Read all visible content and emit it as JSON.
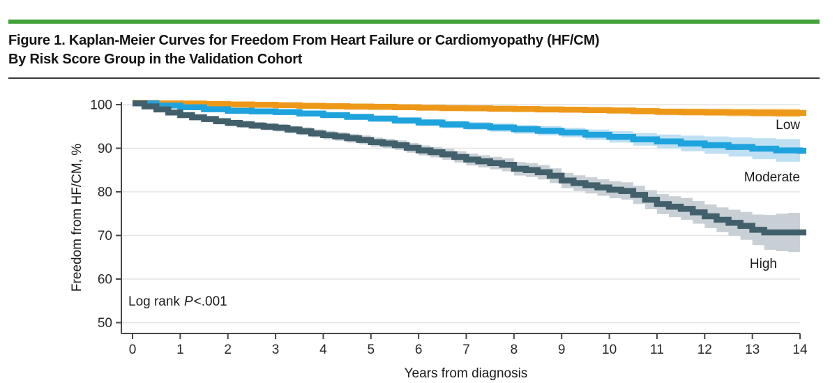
{
  "header": {
    "title_line1": "Figure 1. Kaplan-Meier Curves for Freedom From Heart Failure or Cardiomyopathy (HF/CM)",
    "title_line2": "By Risk Score Group in the Validation Cohort",
    "accent_color": "#44A23B"
  },
  "chart_data": {
    "type": "line",
    "subtype": "kaplan-meier-step-with-confidence-bands",
    "title": "Kaplan-Meier Curves for Freedom From Heart Failure or Cardiomyopathy (HF/CM) By Risk Score Group in the Validation Cohort",
    "xlabel": "Years from diagnosis",
    "ylabel": "Freedom from HF/CM, %",
    "xlim": [
      0,
      14
    ],
    "ylim": [
      47.5,
      102
    ],
    "xticks": [
      0,
      1,
      2,
      3,
      4,
      5,
      6,
      7,
      8,
      9,
      10,
      11,
      12,
      13,
      14
    ],
    "yticks": [
      50,
      60,
      70,
      80,
      90,
      100
    ],
    "grid": "horizontal-only",
    "legend_position": "right-end-of-curve-labels",
    "annotation": {
      "prefix": "Log rank",
      "italic": "P",
      "suffix": "<.001"
    },
    "colors": {
      "grid": "#E4E4E4",
      "axis": "#474747"
    },
    "series": [
      {
        "name": "Low",
        "color": "#EE9819",
        "band_color": "#F6CE8B",
        "x": [
          0,
          0.5,
          1,
          1.5,
          2,
          2.5,
          3,
          3.5,
          4,
          4.5,
          5,
          5.5,
          6,
          6.5,
          7,
          7.5,
          8,
          8.5,
          9,
          9.5,
          10,
          10.5,
          11,
          11.5,
          12,
          12.5,
          13,
          13.5,
          14
        ],
        "values": [
          100.4,
          100.3,
          100.25,
          100.15,
          100.05,
          99.95,
          99.85,
          99.75,
          99.65,
          99.55,
          99.5,
          99.4,
          99.3,
          99.2,
          99.15,
          99.05,
          99.0,
          98.9,
          98.85,
          98.75,
          98.65,
          98.5,
          98.35,
          98.3,
          98.25,
          98.2,
          98.15,
          98.1,
          98.1
        ],
        "ci_halfwidth": [
          0.2,
          0.22,
          0.25,
          0.28,
          0.3,
          0.33,
          0.35,
          0.38,
          0.4,
          0.42,
          0.45,
          0.48,
          0.5,
          0.52,
          0.55,
          0.58,
          0.6,
          0.62,
          0.65,
          0.68,
          0.7,
          0.73,
          0.76,
          0.8,
          0.83,
          0.86,
          0.9,
          0.95,
          1.0
        ]
      },
      {
        "name": "Moderate",
        "color": "#1FA3DD",
        "band_color": "#BFE0F3",
        "x": [
          0,
          0.5,
          1,
          1.5,
          2,
          2.5,
          3,
          3.5,
          4,
          4.5,
          5,
          5.5,
          6,
          6.5,
          7,
          7.5,
          8,
          8.5,
          9,
          9.5,
          10,
          10.5,
          11,
          11.5,
          12,
          12.5,
          13,
          13.5,
          14
        ],
        "values": [
          100.3,
          99.8,
          99.4,
          98.95,
          98.6,
          98.45,
          98.3,
          97.95,
          97.6,
          97.2,
          96.8,
          96.35,
          95.9,
          95.45,
          95.1,
          94.75,
          94.35,
          94.0,
          93.6,
          93.1,
          92.6,
          92.05,
          91.55,
          91.1,
          90.7,
          90.3,
          89.9,
          89.5,
          89.4
        ],
        "ci_halfwidth": [
          0.2,
          0.25,
          0.3,
          0.35,
          0.4,
          0.45,
          0.5,
          0.55,
          0.6,
          0.65,
          0.7,
          0.75,
          0.8,
          0.85,
          0.9,
          0.95,
          1.0,
          1.05,
          1.1,
          1.2,
          1.3,
          1.45,
          1.6,
          1.8,
          2.0,
          2.2,
          2.4,
          2.6,
          2.8
        ]
      },
      {
        "name": "High",
        "color": "#41606C",
        "band_color": "#C9D0D5",
        "x": [
          0,
          0.25,
          0.5,
          0.75,
          1,
          1.25,
          1.5,
          1.75,
          2,
          2.25,
          2.5,
          2.75,
          3,
          3.25,
          3.5,
          3.75,
          4,
          4.25,
          4.5,
          4.75,
          5,
          5.25,
          5.5,
          5.75,
          6,
          6.25,
          6.5,
          6.75,
          7,
          7.25,
          7.5,
          7.75,
          8,
          8.25,
          8.5,
          8.75,
          9,
          9.25,
          9.5,
          9.75,
          10,
          10.25,
          10.5,
          10.75,
          11,
          11.25,
          11.5,
          11.75,
          12,
          12.25,
          12.5,
          12.75,
          13,
          13.25,
          13.5,
          13.75,
          14
        ],
        "values": [
          100.3,
          99.6,
          98.9,
          98.2,
          97.6,
          97.1,
          96.7,
          96.2,
          95.8,
          95.5,
          95.2,
          94.95,
          94.7,
          94.3,
          93.9,
          93.4,
          93.0,
          92.7,
          92.3,
          91.9,
          91.4,
          91.1,
          90.7,
          90.1,
          89.5,
          89.1,
          88.6,
          88.0,
          87.4,
          87.0,
          86.6,
          86.2,
          85.3,
          85.0,
          84.5,
          83.7,
          82.6,
          82.0,
          81.5,
          81.0,
          80.5,
          80.2,
          79.3,
          78.2,
          77.2,
          76.6,
          76.1,
          75.3,
          74.4,
          73.6,
          72.9,
          72.2,
          71.3,
          70.7,
          70.7,
          70.7,
          70.7
        ],
        "ci_halfwidth": [
          0.3,
          0.4,
          0.5,
          0.55,
          0.6,
          0.65,
          0.7,
          0.72,
          0.75,
          0.78,
          0.8,
          0.82,
          0.85,
          0.87,
          0.9,
          0.92,
          0.95,
          0.97,
          1.0,
          1.02,
          1.05,
          1.07,
          1.1,
          1.12,
          1.15,
          1.2,
          1.25,
          1.3,
          1.35,
          1.4,
          1.45,
          1.5,
          1.55,
          1.6,
          1.65,
          1.7,
          1.75,
          1.8,
          1.85,
          1.9,
          1.95,
          2.0,
          2.1,
          2.2,
          2.3,
          2.4,
          2.5,
          2.6,
          2.7,
          2.85,
          3.0,
          3.2,
          3.5,
          4.0,
          4.3,
          4.5,
          4.5
        ]
      }
    ]
  }
}
